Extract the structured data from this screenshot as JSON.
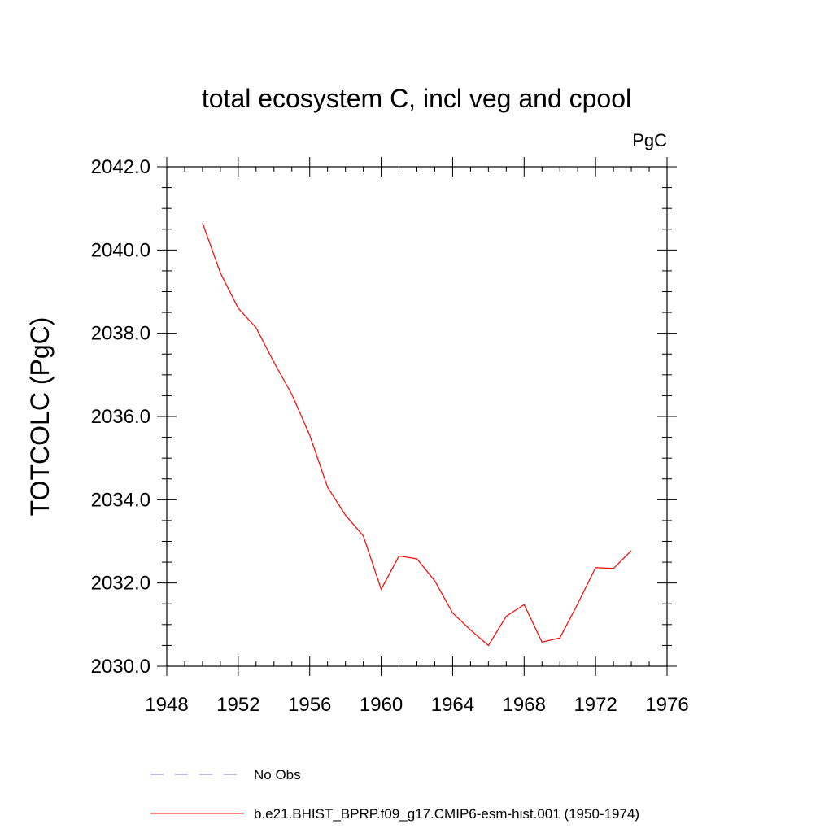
{
  "chart_data": {
    "type": "line",
    "title": "total ecosystem C, incl veg and cpool",
    "units": "PgC",
    "xlabel": "",
    "ylabel": "TOTCOLC  (PgC)",
    "xlim": [
      1948,
      1976
    ],
    "ylim": [
      2030.0,
      2042.0
    ],
    "xticks": [
      1948,
      1952,
      1956,
      1960,
      1964,
      1968,
      1972,
      1976
    ],
    "xtick_labels": [
      "1948",
      "1952",
      "1956",
      "1960",
      "1964",
      "1968",
      "1972",
      "1976"
    ],
    "yticks": [
      2030,
      2032,
      2034,
      2036,
      2038,
      2040,
      2042
    ],
    "ytick_labels": [
      "2030.0",
      "2032.0",
      "2034.0",
      "2036.0",
      "2038.0",
      "2040.0",
      "2042.0"
    ],
    "y_minor_step": 0.5,
    "x_minor_step": 1,
    "grid": false,
    "series": [
      {
        "name": "b.e21.BHIST_BPRP.f09_g17.CMIP6-esm-hist.001 (1950-1974)",
        "color": "#ff0000",
        "dash": "solid",
        "x": [
          1950,
          1951,
          1952,
          1953,
          1954,
          1955,
          1956,
          1957,
          1958,
          1959,
          1960,
          1961,
          1962,
          1963,
          1964,
          1965,
          1966,
          1967,
          1968,
          1969,
          1970,
          1971,
          1972,
          1973,
          1974
        ],
        "y": [
          2040.65,
          2039.45,
          2038.6,
          2038.13,
          2037.3,
          2036.53,
          2035.55,
          2034.3,
          2033.63,
          2033.13,
          2031.85,
          2032.65,
          2032.58,
          2032.05,
          2031.28,
          2030.87,
          2030.5,
          2031.2,
          2031.48,
          2030.58,
          2030.68,
          2031.5,
          2032.37,
          2032.35,
          2032.78
        ]
      }
    ],
    "legend": [
      {
        "label": "No Obs",
        "color": "#7777cc",
        "dash": "dashed"
      },
      {
        "label": "b.e21.BHIST_BPRP.f09_g17.CMIP6-esm-hist.001 (1950-1974)",
        "color": "#ff0000",
        "dash": "solid"
      }
    ],
    "legend_position": "bottom"
  }
}
